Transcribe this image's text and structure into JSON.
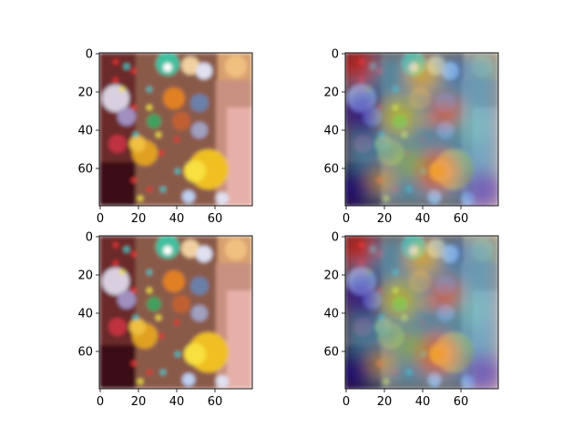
{
  "chart_data": [
    {
      "type": "image",
      "position": "top-left",
      "image_content": "blurred photo of colorful hanging toys and ornaments",
      "overlay": "none",
      "xlim": [
        0,
        80
      ],
      "ylim": [
        80,
        0
      ],
      "x_ticks": [
        0,
        20,
        40,
        60
      ],
      "y_ticks": [
        0,
        20,
        40,
        60
      ]
    },
    {
      "type": "image",
      "position": "top-right",
      "image_content": "same photo with jet-colormap saliency heatmap overlay",
      "overlay": "jet-heatmap",
      "xlim": [
        0,
        80
      ],
      "ylim": [
        80,
        0
      ],
      "x_ticks": [
        0,
        20,
        40,
        60
      ],
      "y_ticks": [
        0,
        20,
        40,
        60
      ]
    },
    {
      "type": "image",
      "position": "bottom-left",
      "image_content": "blurred photo of colorful hanging toys and ornaments",
      "overlay": "none",
      "xlim": [
        0,
        80
      ],
      "ylim": [
        80,
        0
      ],
      "x_ticks": [
        0,
        20,
        40,
        60
      ],
      "y_ticks": [
        0,
        20,
        40,
        60
      ]
    },
    {
      "type": "image",
      "position": "bottom-right",
      "image_content": "same photo with jet-colormap saliency heatmap overlay",
      "overlay": "jet-heatmap",
      "xlim": [
        0,
        80
      ],
      "ylim": [
        80,
        0
      ],
      "x_ticks": [
        0,
        20,
        40,
        60
      ],
      "y_ticks": [
        0,
        20,
        40,
        60
      ]
    }
  ]
}
